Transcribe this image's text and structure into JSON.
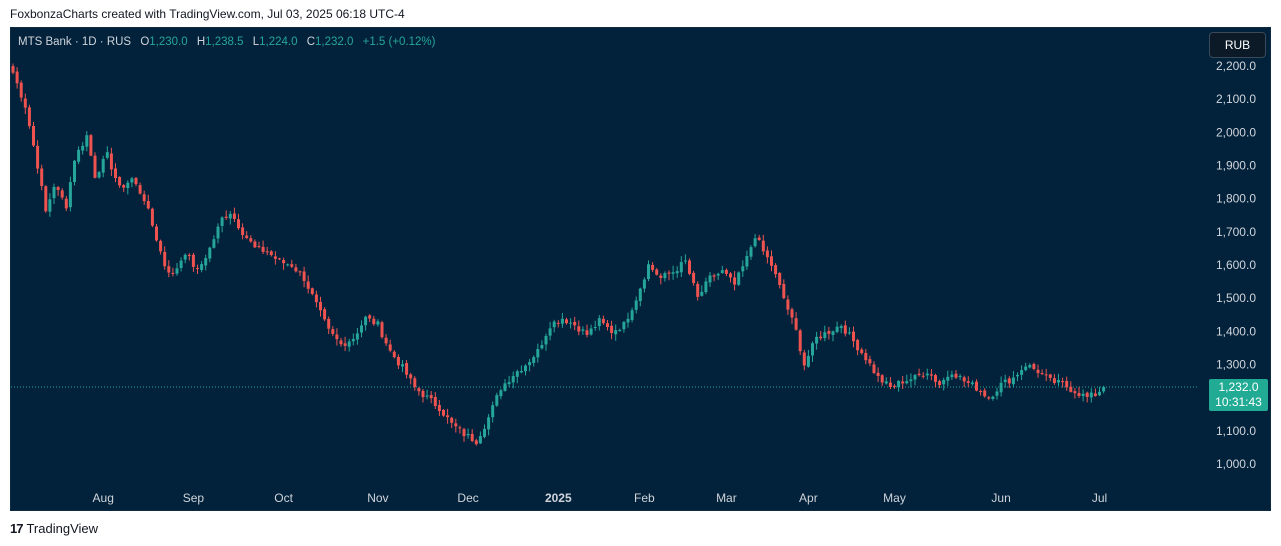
{
  "header": {
    "attribution": "FoxbonzaCharts created with TradingView.com, Jul 03, 2025 06:18 UTC-4"
  },
  "legend": {
    "symbol": "MTS Bank · 1D · RUS",
    "o_key": "O",
    "o_val": "1,230.0",
    "h_key": "H",
    "h_val": "1,238.5",
    "l_key": "L",
    "l_val": "1,224.0",
    "c_key": "C",
    "c_val": "1,232.0",
    "change": "+1.5 (+0.12%)"
  },
  "currency_button": "RUB",
  "price_badge": {
    "price": "1,232.0",
    "countdown": "10:31:43"
  },
  "footer": {
    "logo": "17",
    "brand": "TradingView"
  },
  "colors": {
    "background": "#01223a",
    "up": "#26a69a",
    "down": "#ef5350",
    "text": "#d1d4dc",
    "badge": "#22ab94"
  },
  "chart_data": {
    "type": "candlestick",
    "y_ticks": [
      "2,200.0",
      "2,100.0",
      "2,000.0",
      "1,900.0",
      "1,800.0",
      "1,700.0",
      "1,600.0",
      "1,500.0",
      "1,400.0",
      "1,300.0",
      "1,100.0",
      "1,000.0"
    ],
    "y_tick_values": [
      2200,
      2100,
      2000,
      1900,
      1800,
      1700,
      1600,
      1500,
      1400,
      1300,
      1100,
      1000
    ],
    "ylim": [
      920,
      2260
    ],
    "x_ticks": [
      "Aug",
      "Sep",
      "Oct",
      "Nov",
      "Dec",
      "2025",
      "Feb",
      "Mar",
      "Apr",
      "May",
      "Jun",
      "Jul"
    ],
    "x_tick_bold": [
      false,
      false,
      false,
      false,
      false,
      true,
      false,
      false,
      false,
      false,
      false,
      false
    ],
    "x_tick_day_index": [
      22,
      44,
      66,
      89,
      111,
      133,
      154,
      174,
      194,
      215,
      241,
      265
    ],
    "last_price": 1232.0,
    "key_closes": [
      [
        0,
        2180
      ],
      [
        3,
        2080
      ],
      [
        6,
        1900
      ],
      [
        8,
        1760
      ],
      [
        10,
        1840
      ],
      [
        13,
        1780
      ],
      [
        15,
        1920
      ],
      [
        18,
        1990
      ],
      [
        20,
        1870
      ],
      [
        23,
        1930
      ],
      [
        26,
        1830
      ],
      [
        29,
        1860
      ],
      [
        32,
        1800
      ],
      [
        34,
        1720
      ],
      [
        37,
        1600
      ],
      [
        39,
        1570
      ],
      [
        42,
        1640
      ],
      [
        45,
        1580
      ],
      [
        48,
        1650
      ],
      [
        51,
        1740
      ],
      [
        53,
        1760
      ],
      [
        56,
        1700
      ],
      [
        59,
        1650
      ],
      [
        62,
        1640
      ],
      [
        65,
        1610
      ],
      [
        68,
        1600
      ],
      [
        71,
        1560
      ],
      [
        74,
        1480
      ],
      [
        77,
        1400
      ],
      [
        80,
        1360
      ],
      [
        83,
        1380
      ],
      [
        86,
        1440
      ],
      [
        89,
        1420
      ],
      [
        92,
        1340
      ],
      [
        95,
        1290
      ],
      [
        98,
        1230
      ],
      [
        101,
        1200
      ],
      [
        104,
        1170
      ],
      [
        107,
        1120
      ],
      [
        110,
        1090
      ],
      [
        113,
        1070
      ],
      [
        116,
        1140
      ],
      [
        119,
        1230
      ],
      [
        122,
        1270
      ],
      [
        125,
        1300
      ],
      [
        128,
        1340
      ],
      [
        131,
        1420
      ],
      [
        134,
        1440
      ],
      [
        137,
        1420
      ],
      [
        140,
        1390
      ],
      [
        143,
        1430
      ],
      [
        146,
        1400
      ],
      [
        149,
        1420
      ],
      [
        152,
        1500
      ],
      [
        155,
        1600
      ],
      [
        158,
        1560
      ],
      [
        161,
        1580
      ],
      [
        164,
        1610
      ],
      [
        167,
        1500
      ],
      [
        170,
        1560
      ],
      [
        173,
        1580
      ],
      [
        176,
        1540
      ],
      [
        179,
        1620
      ],
      [
        181,
        1690
      ],
      [
        183,
        1640
      ],
      [
        185,
        1600
      ],
      [
        188,
        1500
      ],
      [
        191,
        1400
      ],
      [
        193,
        1300
      ],
      [
        196,
        1380
      ],
      [
        199,
        1400
      ],
      [
        202,
        1420
      ],
      [
        205,
        1370
      ],
      [
        208,
        1320
      ],
      [
        211,
        1260
      ],
      [
        214,
        1230
      ],
      [
        217,
        1250
      ],
      [
        220,
        1260
      ],
      [
        223,
        1280
      ],
      [
        226,
        1240
      ],
      [
        229,
        1280
      ],
      [
        232,
        1250
      ],
      [
        235,
        1230
      ],
      [
        238,
        1200
      ],
      [
        241,
        1240
      ],
      [
        244,
        1260
      ],
      [
        247,
        1300
      ],
      [
        250,
        1280
      ],
      [
        253,
        1250
      ],
      [
        256,
        1240
      ],
      [
        259,
        1220
      ],
      [
        262,
        1200
      ],
      [
        264,
        1210
      ],
      [
        266,
        1232
      ]
    ]
  }
}
